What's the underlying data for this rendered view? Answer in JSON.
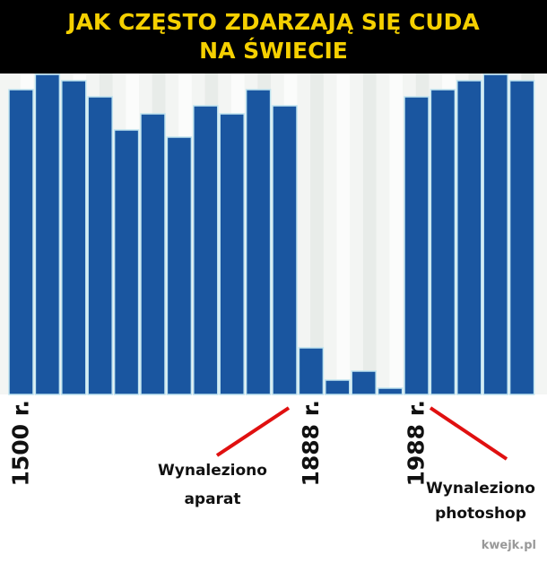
{
  "chart_data": {
    "type": "bar",
    "title": [
      "JAK CZĘSTO ZDARZAJĄ SIĘ CUDA",
      "NA ŚWIECIE"
    ],
    "categories": [
      "1500 r.",
      null,
      null,
      null,
      null,
      null,
      null,
      null,
      null,
      null,
      null,
      "1888 r.",
      null,
      null,
      null,
      "1988 r.",
      null,
      null,
      null,
      null
    ],
    "values": [
      340,
      357,
      350,
      332,
      295,
      313,
      287,
      322,
      313,
      340,
      322,
      52,
      16,
      26,
      7,
      332,
      340,
      350,
      357,
      350
    ],
    "color": "#1a56a0",
    "ylim": [
      0,
      358
    ],
    "annotations": [
      [
        "Wynaleziono",
        "aparat"
      ],
      [
        "Wynaleziono",
        "photoshop"
      ]
    ],
    "watermark": "kwejk.pl"
  }
}
